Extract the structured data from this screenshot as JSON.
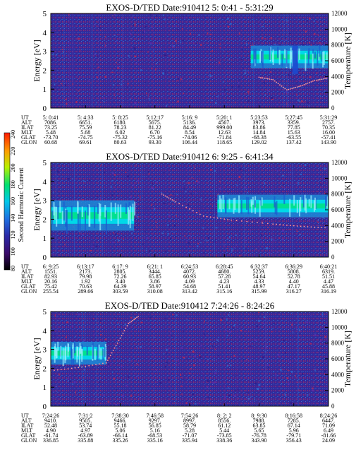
{
  "colorbar": {
    "label": "Second Harmonic Current",
    "ticks": [
      "240",
      "220",
      "200",
      "180",
      "160",
      "140",
      "120",
      "100",
      "80"
    ]
  },
  "colors": {
    "background_low": "#2a1b8a",
    "background_mid": "#3a3aa8",
    "noise_red": "#b4285a",
    "cyan": "#00d8e8",
    "green": "#00e090",
    "band_blue": "#1c8ad8",
    "temperature_dots": "#ff9a9a"
  },
  "row_labels": [
    "UT",
    "ALT",
    "ILAT",
    "MLT",
    "GLAT",
    "GLON"
  ],
  "chart_data": [
    {
      "type": "heatmap",
      "title": "EXOS-D/TED   Date:910412   5: 0:41 - 5:31:29",
      "ylabel": "Energy [eV]",
      "ylabel_right": "Temperature [K]",
      "ylim": [
        0,
        5
      ],
      "ylim_right": [
        0,
        12000
      ],
      "yticks": [
        0,
        1,
        2,
        3,
        4,
        5
      ],
      "yticks_right": [
        0,
        2000,
        4000,
        6000,
        8000,
        10000,
        12000
      ],
      "time_range": [
        "5:00:41",
        "5:31:29"
      ],
      "emission": {
        "start": 0.72,
        "end": 1.0,
        "center_ev": 2.7,
        "width_ev": 0.6,
        "note_dip": 0.88
      },
      "temperature_points": [
        [
          0.75,
          3900
        ],
        [
          0.8,
          3600
        ],
        [
          0.85,
          2300
        ],
        [
          0.9,
          2800
        ],
        [
          0.95,
          3500
        ],
        [
          1.0,
          3800
        ]
      ],
      "table": {
        "UT": [
          "5: 0:41",
          "5: 4:33",
          "5: 8:25",
          "5:12:17",
          "5:16: 9",
          "5:20: 1",
          "5:23:53",
          "5:27:45",
          "5:31:29"
        ],
        "ALT": [
          "7086.",
          "6651.",
          "6180.",
          "5675.",
          "5136.",
          "4567.",
          "3973.",
          "3359.",
          "2757."
        ],
        "ILAT": [
          "73.25",
          "75.59",
          "78.23",
          "81.22",
          "84.49",
          "999.00",
          "83.86",
          "77.85",
          "70.35"
        ],
        "MLT": [
          "5.48",
          "5.68",
          "6.02",
          "6.70",
          "8.54",
          "12.63",
          "14.84",
          "15.63",
          "16.00"
        ],
        "GLAT": [
          "-73.70",
          "-74.75",
          "-75.32",
          "-75.16",
          "-74.06",
          "-71.84",
          "-68.38",
          "-63.55",
          "-57.41"
        ],
        "GLON": [
          "60.68",
          "69.61",
          "80.63",
          "93.30",
          "106.44",
          "118.65",
          "129.02",
          "137.42",
          "143.90"
        ]
      }
    },
    {
      "type": "heatmap",
      "title": "EXOS-D/TED   Date:910412   6: 9:25 - 6:41:34",
      "ylabel": "Energy [eV]",
      "ylabel_right": "Temperature [K]",
      "ylim": [
        0,
        5
      ],
      "ylim_right": [
        0,
        12000
      ],
      "yticks": [
        0,
        1,
        2,
        3,
        4,
        5
      ],
      "yticks_right": [
        0,
        2000,
        4000,
        6000,
        8000,
        10000,
        12000
      ],
      "time_range": [
        "6:09:25",
        "6:41:34"
      ],
      "emission_left": {
        "start": 0.0,
        "end": 0.3,
        "center_ev": 2.2,
        "width_ev": 0.8
      },
      "emission_right": {
        "start": 0.6,
        "end": 1.0,
        "center_ev": 2.7,
        "width_ev": 0.6
      },
      "temperature_points": [
        [
          0.4,
          8000
        ],
        [
          0.45,
          7000
        ],
        [
          0.55,
          5200
        ],
        [
          0.65,
          4700
        ],
        [
          0.8,
          4200
        ],
        [
          0.9,
          3900
        ],
        [
          1.0,
          3700
        ]
      ],
      "table": {
        "UT": [
          "6: 9:25",
          "6:13:17",
          "6:17: 9",
          "6:21: 1",
          "6:24:53",
          "6:28:45",
          "6:32:37",
          "6:36:29",
          "6:40:21"
        ],
        "ALT": [
          "1551.",
          "2173.",
          "2805.",
          "3444.",
          "4072.",
          "4680.",
          "5259.",
          "5808.",
          "6319."
        ],
        "ILAT": [
          "82.93",
          "79.98",
          "72.26",
          "65.85",
          "60.93",
          "57.28",
          "54.64",
          "52.78",
          "51.51"
        ],
        "MLT": [
          "20.16",
          "1.92",
          "3.40",
          "3.86",
          "4.09",
          "4.23",
          "4.33",
          "4.40",
          "4.47"
        ],
        "GLAT": [
          "75.42",
          "70.63",
          "64.39",
          "58.97",
          "54.68",
          "51.41",
          "48.97",
          "47.17",
          "45.88"
        ],
        "GLON": [
          "255.54",
          "289.66",
          "303.59",
          "310.08",
          "313.42",
          "315.16",
          "315.99",
          "316.27",
          "316.19"
        ]
      }
    },
    {
      "type": "heatmap",
      "title": "EXOS-D/TED   Date:910412   7:24:26 - 8:24:26",
      "ylabel": "Energy [eV]",
      "ylabel_right": "Temperature [K]",
      "ylim": [
        0,
        5
      ],
      "ylim_right": [
        0,
        12000
      ],
      "yticks": [
        0,
        1,
        2,
        3,
        4,
        5
      ],
      "yticks_right": [
        0,
        2000,
        4000,
        6000,
        8000,
        10000,
        12000
      ],
      "time_range": [
        "7:24:26",
        "8:24:26"
      ],
      "emission": {
        "start": 0.0,
        "end": 0.2,
        "center_ev": 2.8,
        "width_ev": 0.6
      },
      "temperature_points": [
        [
          0.0,
          4500
        ],
        [
          0.1,
          4900
        ],
        [
          0.2,
          5500
        ],
        [
          0.24,
          8000
        ],
        [
          0.28,
          10500
        ],
        [
          0.32,
          11500
        ]
      ],
      "table": {
        "UT": [
          "7:24:26",
          "7:31:2",
          "7:38:30",
          "7:46:58",
          "7:54:26",
          "8: 2: 2",
          "8: 9:30",
          "8:16:58",
          "8:24:26"
        ],
        "ALT": [
          "9410.",
          "9505.",
          "9466.",
          "9297.",
          "8997.",
          "8556.",
          "7988.",
          "7285.",
          "6447."
        ],
        "ILAT": [
          "52.48",
          "53.74",
          "55.18",
          "56.85",
          "58.79",
          "61.12",
          "63.85",
          "67.14",
          "71.09"
        ],
        "MLT": [
          "4.90",
          "4.97",
          "5.06",
          "5.16",
          "5.28",
          "5.44",
          "5.65",
          "5.96",
          "6.49"
        ],
        "GLAT": [
          "-61.74",
          "-63.89",
          "-66.14",
          "-68.53",
          "-71.07",
          "-73.85",
          "-76.78",
          "-79.71",
          "-81.66"
        ],
        "GLON": [
          "336.85",
          "335.88",
          "335.26",
          "335.16",
          "335.94",
          "338.36",
          "343.90",
          "356.43",
          "24.09"
        ]
      }
    }
  ]
}
